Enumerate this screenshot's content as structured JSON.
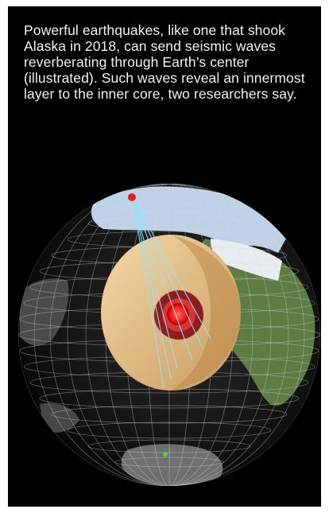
{
  "caption": "Powerful earthquakes, like one that shook Alaska in 2018, can send seismic waves reverberating through Earth’s center (illustrated). Such waves reveal an innermost layer to the inner core, two researchers say.",
  "colors": {
    "background": "#000000",
    "caption_text": "#f2f2f2",
    "core_outer": "#e8c78f",
    "core_inner_ring": "#8f1d1d",
    "core_center": "#ff3b3b",
    "seismic_rays": "#8fe3ff",
    "grid_lines": "#d9d9d9"
  },
  "illustration": {
    "subject": "globe-cutaway",
    "icon": "globe-icon"
  }
}
